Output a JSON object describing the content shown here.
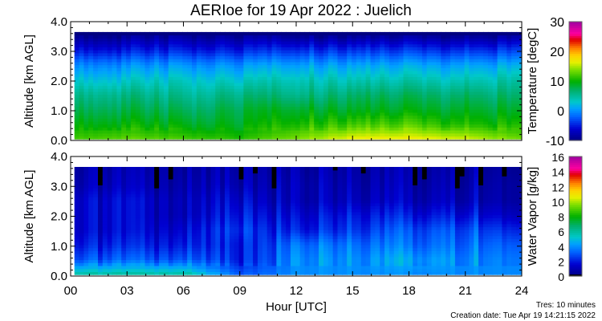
{
  "title": "AERIoe for 19 Apr 2022 : Juelich",
  "footer": {
    "resolution": "Tres: 10 minutes",
    "creation_date": "Creation date: Tue Apr 19 14:21:15 2022"
  },
  "chart_data": [
    {
      "type": "heatmap",
      "panel": "temperature",
      "xlabel": "Hour [UTC]",
      "ylabel": "Altitude [km AGL]",
      "xlim": [
        0,
        24
      ],
      "ylim": [
        0,
        4
      ],
      "xticks": [
        "00",
        "03",
        "06",
        "09",
        "12",
        "15",
        "18",
        "21",
        "24"
      ],
      "yticks": [
        "0.0",
        "1.0",
        "2.0",
        "3.0",
        "4.0"
      ],
      "colorbar": {
        "label": "Temperature [degC]",
        "range": [
          -10,
          30
        ],
        "ticks": [
          "-10",
          "0",
          "10",
          "20",
          "30"
        ]
      },
      "x": [
        0,
        3,
        6,
        9,
        12,
        15,
        18,
        21,
        24
      ],
      "y": [
        0,
        0.5,
        1.0,
        1.5,
        2.0,
        2.5,
        3.0,
        3.5
      ],
      "z": [
        [
          12,
          13,
          12,
          11,
          14,
          17,
          17,
          16,
          13
        ],
        [
          10,
          10,
          9,
          9,
          11,
          12,
          12,
          11,
          10
        ],
        [
          8,
          8,
          7,
          8,
          9,
          9,
          9,
          9,
          8
        ],
        [
          6,
          6,
          5,
          6,
          6,
          7,
          7,
          7,
          6
        ],
        [
          3,
          3,
          3,
          3,
          4,
          4,
          4,
          4,
          4
        ],
        [
          0,
          0,
          0,
          0,
          1,
          1,
          1,
          1,
          1
        ],
        [
          -5,
          -5,
          -5,
          -5,
          -4,
          -4,
          -4,
          -4,
          -4
        ],
        [
          -9,
          -9,
          -9,
          -9,
          -9,
          -9,
          -9,
          -9,
          -9
        ]
      ]
    },
    {
      "type": "heatmap",
      "panel": "water-vapor",
      "xlabel": "Hour [UTC]",
      "ylabel": "Altitude [km AGL]",
      "xlim": [
        0,
        24
      ],
      "ylim": [
        0,
        4
      ],
      "xticks": [
        "00",
        "03",
        "06",
        "09",
        "12",
        "15",
        "18",
        "21",
        "24"
      ],
      "yticks": [
        "0.0",
        "1.0",
        "2.0",
        "3.0",
        "4.0"
      ],
      "colorbar": {
        "label": "Water Vapor [g/kg]",
        "range": [
          0,
          16
        ],
        "ticks": [
          "0",
          "2",
          "4",
          "6",
          "8",
          "10",
          "12",
          "14",
          "16"
        ]
      },
      "x": [
        0,
        3,
        6,
        9,
        12,
        15,
        18,
        21,
        24
      ],
      "y": [
        0,
        0.5,
        1.0,
        1.5,
        2.0,
        2.5,
        3.0,
        3.5
      ],
      "z": [
        [
          6,
          6,
          6,
          3,
          4,
          4,
          4,
          4,
          4
        ],
        [
          3,
          3,
          3,
          2,
          4,
          4,
          4.5,
          4,
          4
        ],
        [
          2,
          2,
          2,
          2,
          3.5,
          3.5,
          3.5,
          3.5,
          3.5
        ],
        [
          1.5,
          1.5,
          1.5,
          2.5,
          2,
          2.5,
          3,
          3,
          2.5
        ],
        [
          1.5,
          1.5,
          1,
          2,
          1.5,
          2,
          2,
          2,
          1.5
        ],
        [
          1.5,
          1.5,
          1,
          1.5,
          1,
          1.2,
          1.2,
          1.2,
          1
        ],
        [
          1,
          1,
          0.8,
          1,
          1,
          1,
          1,
          1,
          1
        ],
        [
          0.8,
          0.8,
          0.6,
          0.8,
          0.8,
          0.8,
          0.8,
          0.8,
          0.8
        ]
      ]
    }
  ]
}
